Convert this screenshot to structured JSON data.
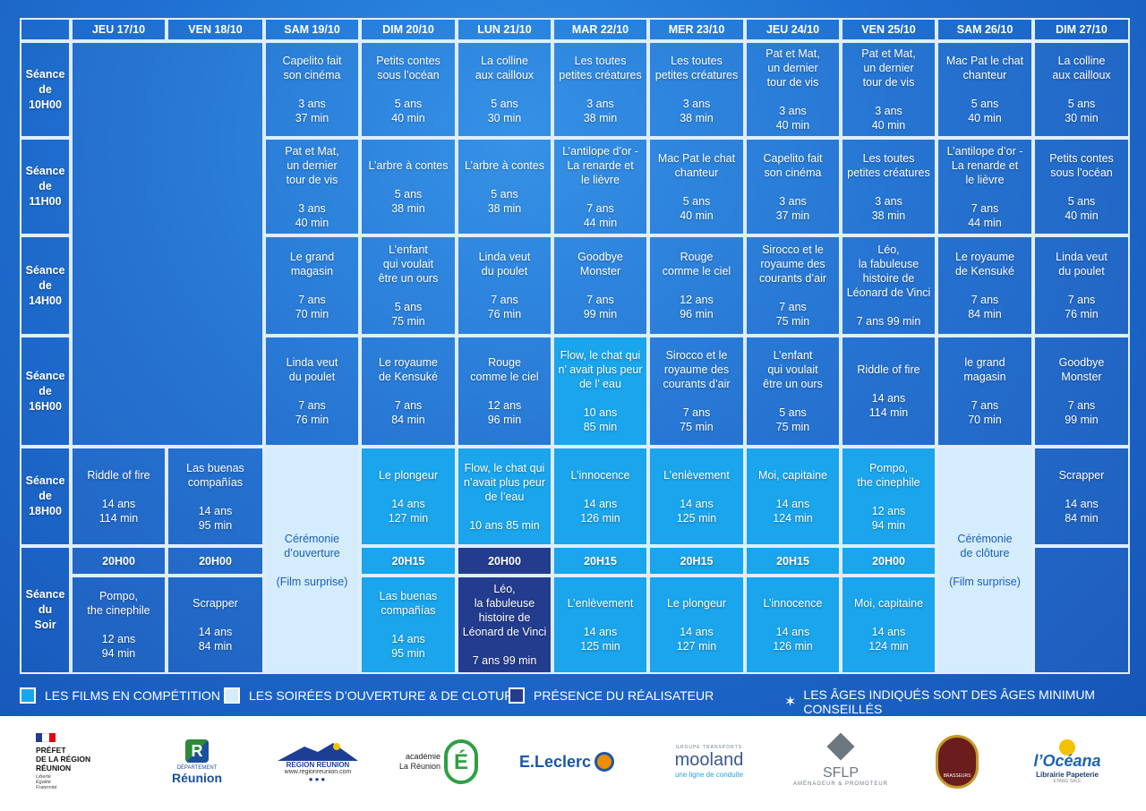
{
  "days": [
    "JEU 17/10",
    "VEN 18/10",
    "SAM 19/10",
    "DIM 20/10",
    "LUN 21/10",
    "MAR 22/10",
    "MER 23/10",
    "JEU 24/10",
    "VEN 25/10",
    "SAM 26/10",
    "DIM 27/10"
  ],
  "rows": {
    "s10": "Séance\nde\n10H00",
    "s11": "Séance\nde\n11H00",
    "s14": "Séance\nde\n14H00",
    "s16": "Séance\nde\n16H00",
    "s18": "Séance\nde\n18H00",
    "soir": "Séance\ndu\nSoir"
  },
  "s10": [
    {
      "t": "Capelito fait\nson cinéma",
      "a": "3 ans\n37 min"
    },
    {
      "t": "Petits contes\nsous l’océan",
      "a": "5 ans\n40 min"
    },
    {
      "t": "La colline\naux cailloux",
      "a": "5 ans\n30 min"
    },
    {
      "t": "Les toutes\npetites créatures",
      "a": "3 ans\n38 min"
    },
    {
      "t": "Les toutes\npetites créatures",
      "a": "3 ans\n38 min"
    },
    {
      "t": "Pat et Mat,\nun dernier\ntour de vis",
      "a": "3 ans\n40 min"
    },
    {
      "t": "Pat et Mat,\nun dernier\ntour de vis",
      "a": "3 ans\n40 min"
    },
    {
      "t": "Mac Pat le chat\nchanteur",
      "a": "5 ans\n40 min"
    },
    {
      "t": "La colline\naux cailloux",
      "a": "5 ans\n30 min"
    }
  ],
  "s11": [
    {
      "t": "Pat et Mat,\nun dernier\ntour de vis",
      "a": "3 ans\n40 min"
    },
    {
      "t": "L’arbre à contes",
      "a": "5 ans\n38 min"
    },
    {
      "t": "L’arbre à contes",
      "a": "5 ans\n38 min"
    },
    {
      "t": "L’antilope d’or -\nLa renarde et\nle lièvre",
      "a": "7 ans\n44 min"
    },
    {
      "t": "Mac Pat le chat\nchanteur",
      "a": "5 ans\n40 min"
    },
    {
      "t": "Capelito fait\nson cinéma",
      "a": "3 ans\n37 min"
    },
    {
      "t": "Les toutes\npetites créatures",
      "a": "3 ans\n38 min"
    },
    {
      "t": "L’antilope d’or -\nLa renarde et\nle lièvre",
      "a": "7 ans\n44 min"
    },
    {
      "t": "Petits contes\nsous l’océan",
      "a": "5 ans\n40 min"
    }
  ],
  "s14": [
    {
      "t": "Le grand\nmagasin",
      "a": "7 ans\n70 min"
    },
    {
      "t": "L’enfant\nqui voulait\nêtre un ours",
      "a": "5 ans\n75 min"
    },
    {
      "t": "Linda veut\ndu poulet",
      "a": "7 ans\n76 min"
    },
    {
      "t": "Goodbye\nMonster",
      "a": "7 ans\n99 min"
    },
    {
      "t": "Rouge\ncomme le ciel",
      "a": "12 ans\n96 min"
    },
    {
      "t": "Sirocco et le\nroyaume des\ncourants d’air",
      "a": "7 ans\n75 min"
    },
    {
      "t": "Léo,\nla fabuleuse\nhistoire de\nLéonard de Vinci",
      "a": "7 ans 99 min"
    },
    {
      "t": "Le royaume\nde Kensuké",
      "a": "7 ans\n84 min"
    },
    {
      "t": "Linda veut\ndu poulet",
      "a": "7 ans\n76 min"
    }
  ],
  "s16": [
    {
      "t": "Linda veut\ndu poulet",
      "a": "7 ans\n76 min"
    },
    {
      "t": "Le royaume\nde Kensuké",
      "a": "7 ans\n84 min"
    },
    {
      "t": "Rouge\ncomme le ciel",
      "a": "12 ans\n96 min"
    },
    {
      "t": "Flow, le chat qui\nn’ avait plus peur\nde l’ eau",
      "a": "10 ans\n85 min"
    },
    {
      "t": "Sirocco et le\nroyaume des\ncourants d’air",
      "a": "7 ans\n75 min"
    },
    {
      "t": "L’enfant\nqui voulait\nêtre un ours",
      "a": "5 ans\n75 min"
    },
    {
      "t": "Riddle of fire",
      "a": "14 ans\n114 min"
    },
    {
      "t": "le grand\nmagasin",
      "a": "7 ans\n70 min"
    },
    {
      "t": "Goodbye\nMonster",
      "a": "7 ans\n99 min"
    }
  ],
  "s18": [
    {
      "t": "Riddle of fire",
      "a": "14 ans\n114 min"
    },
    {
      "t": "Las buenas\ncompañías",
      "a": "14 ans\n95 min"
    },
    {
      "t": "Le plongeur",
      "a": "14 ans\n127 min"
    },
    {
      "t": "Flow, le chat qui\nn’avait plus peur\nde l’eau",
      "a": "10 ans 85 min"
    },
    {
      "t": "L’innocence",
      "a": "14 ans\n126 min"
    },
    {
      "t": "L’enlèvement",
      "a": "14 ans\n125 min"
    },
    {
      "t": "Moi, capitaine",
      "a": "14 ans\n124 min"
    },
    {
      "t": "Pompo,\nthe cinephile",
      "a": "12 ans\n94 min"
    },
    {
      "t": "Scrapper",
      "a": "14 ans\n84 min"
    }
  ],
  "ceremonies": {
    "open": {
      "t": "Cérémonie\nd’ouverture",
      "a": "(Film surprise)"
    },
    "close": {
      "t": "Cérémonie\nde clôture",
      "a": "(Film surprise)"
    }
  },
  "times": [
    "20H00",
    "20H00",
    "20H15",
    "20H00",
    "20H15",
    "20H15",
    "20H15",
    "20H00"
  ],
  "soir": [
    {
      "t": "Pompo,\nthe cinephile",
      "a": "12 ans\n94 min"
    },
    {
      "t": "Scrapper",
      "a": "14 ans\n84 min"
    },
    {
      "t": "Las buenas\ncompañías",
      "a": "14 ans\n95 min"
    },
    {
      "t": "Léo,\nla fabuleuse\nhistoire de\nLéonard de Vinci",
      "a": "7 ans 99 min"
    },
    {
      "t": "L’enlèvement",
      "a": "14 ans\n125 min"
    },
    {
      "t": "Le plongeur",
      "a": "14 ans\n127 min"
    },
    {
      "t": "L’innocence",
      "a": "14 ans\n126 min"
    },
    {
      "t": "Moi, capitaine",
      "a": "14 ans\n124 min"
    }
  ],
  "legend": {
    "competition": "LES FILMS EN COMPÉTITION",
    "soirees": "LES SOIRÉES D’OUVERTURE & DE CLOTURE",
    "realisateur": "PRÉSENCE DU RÉALISATEUR",
    "ages": "LES ÂGES INDIQUÉS SONT DES ÂGES MINIMUM CONSEILLÉS",
    "ages_icon": "star-icon"
  },
  "colors": {
    "background": "#1f6fd0",
    "competition": "#1aa5ec",
    "soirees": "#d4ecfb",
    "realisateur": "#233c8e"
  },
  "sponsors": {
    "prefet": "PRÉFET\nDE LA RÉGION\nRÉUNION",
    "prefet_motto": "Liberté\nÉgalité\nFraternité",
    "departement_small": "DÉPARTEMENT",
    "departement": "Réunion",
    "region": "REGION REUNION",
    "region_url": "www.regionreunion.com",
    "academie": "académie\nLa Réunion",
    "leclerc": "E.Leclerc",
    "mooland_small": "GROUPE TRANSPORTS",
    "mooland": "mooland",
    "mooland_tag": "une ligne de conduite",
    "sflp": "SFLP",
    "sflp_tag": "AMÉNAGEUR & PROMOTEUR",
    "brasseurs": "BRASSEURS",
    "oceana": "l’Océana",
    "oceana_tag": "Librairie Papeterie",
    "oceana_place": "ETANG SALÉ"
  }
}
